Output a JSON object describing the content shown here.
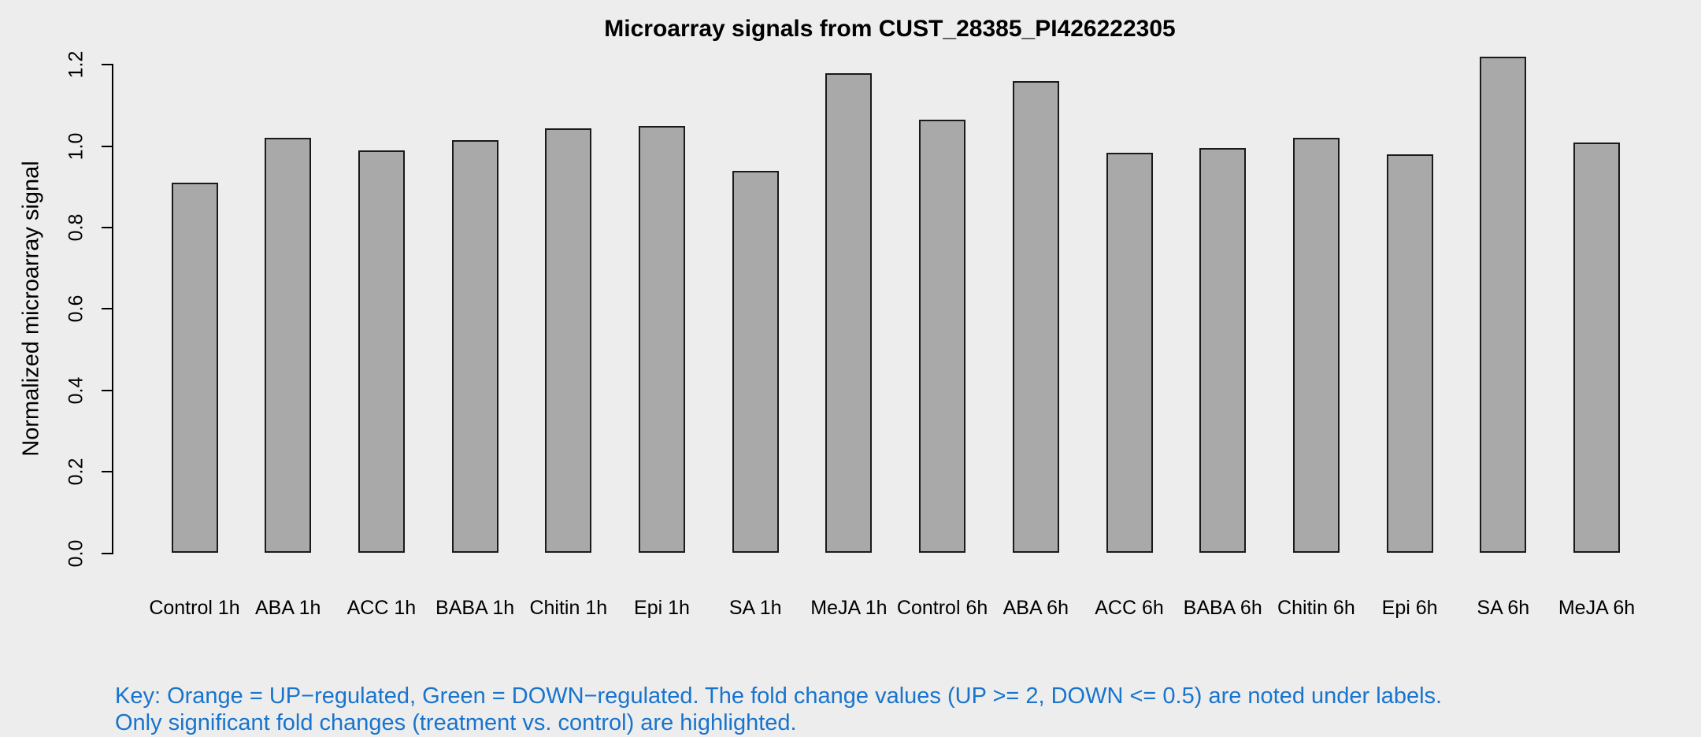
{
  "chart_data": {
    "type": "bar",
    "title": "Microarray signals from CUST_28385_PI426222305",
    "xlabel": "",
    "ylabel": "Normalized microarray signal",
    "categories": [
      "Control 1h",
      "ABA 1h",
      "ACC 1h",
      "BABA 1h",
      "Chitin 1h",
      "Epi 1h",
      "SA 1h",
      "MeJA 1h",
      "Control 6h",
      "ABA 6h",
      "ACC 6h",
      "BABA 6h",
      "Chitin 6h",
      "Epi 6h",
      "SA 6h",
      "MeJA 6h"
    ],
    "values": [
      0.91,
      1.02,
      0.99,
      1.015,
      1.045,
      1.05,
      0.94,
      1.18,
      1.065,
      1.16,
      0.985,
      0.995,
      1.02,
      0.98,
      1.22,
      1.01
    ],
    "ylim": [
      0,
      1.2
    ],
    "yticks": [
      0.0,
      0.2,
      0.4,
      0.6,
      0.8,
      1.0,
      1.2
    ],
    "grid": false,
    "legend_position": "none",
    "bar_fill": "#A9A9A9",
    "bar_border": "#1A1A1A"
  },
  "footnote": {
    "line1": "Key: Orange = UP−regulated, Green = DOWN−regulated. The fold change values (UP >= 2, DOWN <= 0.5) are noted under labels.",
    "line2": "Only significant fold changes (treatment vs. control) are highlighted.",
    "color": "#1874CD"
  },
  "colors": {
    "background": "#EDEDED",
    "axis": "#000000"
  }
}
